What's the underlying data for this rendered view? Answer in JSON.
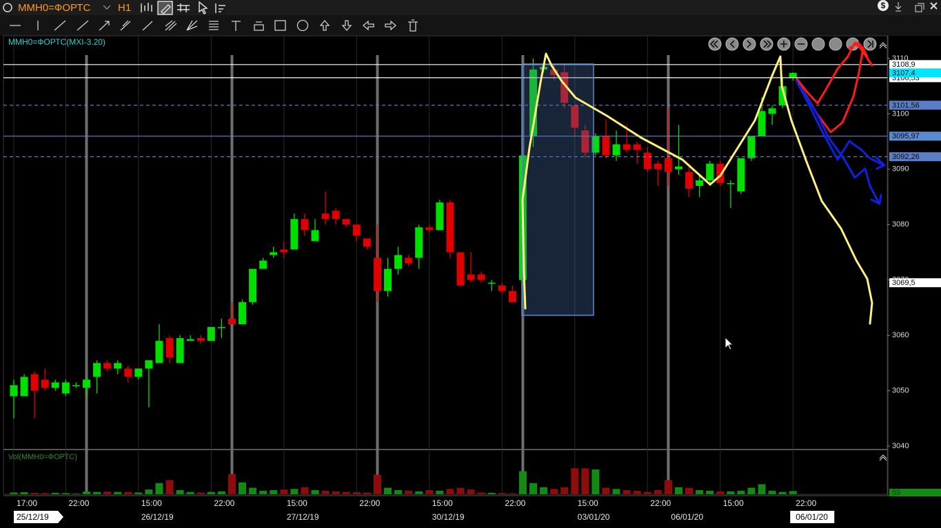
{
  "header": {
    "symbol": "MMH0=ФОРТС",
    "timeframe": "H1"
  },
  "chart_data": {
    "type": "candlestick",
    "title": "MMH0=ФОРТС(MXI-3.20)",
    "up_color": "#00e000",
    "down_color": "#e00000",
    "ylim": [
      3039.5,
      3114.1
    ],
    "yticks": [
      3040,
      3050,
      3060,
      3070,
      3080,
      3090,
      3100,
      3110
    ],
    "candles": {
      "open": [
        3049,
        3049,
        3053,
        3052,
        3050.5,
        3049.5,
        3051,
        3050.5,
        3052.5,
        3055,
        3054,
        3054,
        3052.5,
        3054,
        3055,
        3059.5,
        3055,
        3059,
        3059.5,
        3059,
        3061.5,
        3063,
        3062,
        3066,
        3072,
        3074.5,
        3075.5,
        3075.5,
        3081,
        3077,
        3082,
        3082.5,
        3081,
        3080,
        3077.5,
        3074,
        3068,
        3072,
        3074,
        3074,
        3079.5,
        3079,
        3084,
        3075,
        3071,
        3071,
        3069.5,
        3069,
        3068,
        3070,
        3096,
        3108,
        3108,
        3107.5,
        3101.5,
        3097,
        3093,
        3096,
        3092.5,
        3094.5,
        3094.5,
        3093,
        3091,
        3092,
        3090,
        3089.5,
        3087,
        3088,
        3091,
        3087.5,
        3086,
        3092,
        3096,
        3100,
        3101.5,
        3106.5
      ],
      "high": [
        3052,
        3053,
        3053.5,
        3054,
        3052,
        3052,
        3051.5,
        3052.5,
        3055.5,
        3055.5,
        3055.5,
        3054.5,
        3054,
        3055.5,
        3062,
        3060,
        3060,
        3060,
        3060,
        3061.5,
        3063,
        3066,
        3066.5,
        3072,
        3074,
        3076,
        3077,
        3082,
        3082,
        3081,
        3086,
        3083,
        3081,
        3080,
        3077.5,
        3080,
        3074,
        3076,
        3074.5,
        3080,
        3080,
        3084.5,
        3084.5,
        3075,
        3075,
        3071.5,
        3070,
        3069.5,
        3069,
        3092.5,
        3110,
        3109,
        3109,
        3109,
        3101.5,
        3098,
        3096.5,
        3099,
        3097,
        3098,
        3095,
        3094,
        3091.5,
        3101,
        3098,
        3091,
        3089,
        3091.5,
        3091.5,
        3088,
        3092,
        3096,
        3103,
        3101.5,
        3106.5,
        3107.5
      ],
      "low": [
        3045,
        3049,
        3045,
        3050,
        3050,
        3049,
        3050.5,
        3049,
        3049.5,
        3053.5,
        3053,
        3051.5,
        3052,
        3047,
        3055,
        3055,
        3055,
        3059,
        3058.5,
        3059,
        3059.5,
        3062,
        3062,
        3065.5,
        3072,
        3074,
        3074,
        3075.5,
        3078,
        3077,
        3080,
        3080,
        3079.5,
        3077,
        3075.5,
        3066,
        3067,
        3071,
        3072.5,
        3072,
        3078.5,
        3079,
        3074,
        3069,
        3069.5,
        3069.5,
        3068,
        3067.5,
        3066,
        3069,
        3094,
        3107.5,
        3106,
        3101,
        3096,
        3092,
        3092.5,
        3092,
        3091.5,
        3093,
        3091,
        3089.5,
        3087,
        3087,
        3089,
        3085,
        3085,
        3087,
        3087,
        3083,
        3085.5,
        3091.5,
        3096,
        3098,
        3101,
        3106
      ],
      "close": [
        3051,
        3052.5,
        3050,
        3050.5,
        3051.5,
        3051.5,
        3051,
        3052,
        3055,
        3054,
        3055,
        3052.5,
        3054,
        3055.5,
        3059,
        3056,
        3059.5,
        3059.3,
        3059,
        3061.5,
        3061.5,
        3062,
        3066,
        3072,
        3073.5,
        3075,
        3075,
        3081,
        3079,
        3079,
        3081,
        3081,
        3080,
        3078,
        3076,
        3068,
        3072,
        3074.5,
        3073,
        3079.5,
        3079,
        3084,
        3075,
        3069,
        3070,
        3070,
        3069.5,
        3068,
        3066,
        3092.5,
        3108,
        3108.5,
        3107,
        3102,
        3097.5,
        3093,
        3096,
        3092.5,
        3094.5,
        3093.5,
        3093.5,
        3090,
        3090,
        3089.5,
        3090.5,
        3086.5,
        3088,
        3091,
        3087.5,
        3087.5,
        3092,
        3096,
        3100.5,
        3101,
        3105,
        3107.4
      ]
    },
    "times": [
      "17:00",
      null,
      null,
      null,
      null,
      "22:00",
      null,
      null,
      null,
      null,
      null,
      null,
      "15:00",
      null,
      null,
      null,
      null,
      null,
      null,
      "22:00",
      null,
      null,
      null,
      null,
      null,
      null,
      "15:00",
      null,
      null,
      null,
      null,
      null,
      null,
      "22:00",
      null,
      null,
      null,
      null,
      null,
      null,
      "15:00",
      null,
      null,
      null,
      null,
      null,
      null,
      "22:00",
      null,
      null,
      null,
      null,
      null,
      null,
      "15:00",
      null,
      null,
      null,
      null,
      null,
      null,
      "22:00",
      null,
      null,
      null,
      null,
      null,
      null,
      "15:00",
      null,
      null,
      null,
      null,
      null,
      null,
      "22:00"
    ],
    "dates": [
      "25/12/19",
      null,
      null,
      null,
      null,
      null,
      null,
      null,
      null,
      null,
      null,
      null,
      "26/12/19",
      null,
      null,
      null,
      null,
      null,
      null,
      null,
      null,
      null,
      null,
      null,
      null,
      null,
      "27/12/19",
      null,
      null,
      null,
      null,
      null,
      null,
      null,
      null,
      null,
      null,
      null,
      null,
      null,
      "30/12/19",
      null,
      null,
      null,
      null,
      null,
      null,
      null,
      null,
      null,
      null,
      null,
      null,
      null,
      "03/01/20",
      null,
      null,
      null,
      null,
      null,
      null,
      null,
      null,
      "06/01/20",
      null,
      null,
      null,
      null,
      null,
      null,
      null,
      null,
      null,
      null,
      null,
      "06/01/20"
    ],
    "levels": [
      {
        "value": 3108.9,
        "label": "3108,9",
        "color": "#ffffff",
        "style": "solid"
      },
      {
        "value": 3106.53,
        "label": "3106,53",
        "color": "#ffffff",
        "style": "solid"
      },
      {
        "value": 3101.56,
        "label": "3101,56",
        "color": "#5a7fc8",
        "style": "dashed"
      },
      {
        "value": 3095.97,
        "label": "3095,97",
        "color": "#5a8ad0",
        "style": "solid"
      },
      {
        "value": 3092.26,
        "label": "3092,26",
        "color": "#5a7fc8",
        "style": "dashed"
      },
      {
        "value": 3069.5,
        "label": "3069,5",
        "color": "#ffffff",
        "style": "none"
      }
    ],
    "last_price": {
      "value": 3107.4,
      "label": "3107,4",
      "color": "#00e5ff"
    },
    "volume": {
      "title": "Vol(MMH0=ФОРТС)",
      "ylim": [
        0,
        700
      ],
      "up_color": "#138a13",
      "down_color": "#8e0c0c",
      "values": [
        30,
        35,
        25,
        20,
        25,
        20,
        10,
        45,
        40,
        45,
        40,
        40,
        30,
        80,
        190,
        240,
        70,
        40,
        30,
        40,
        50,
        340,
        200,
        110,
        60,
        70,
        80,
        90,
        120,
        70,
        60,
        50,
        40,
        35,
        30,
        330,
        110,
        70,
        60,
        50,
        70,
        60,
        90,
        110,
        80,
        30,
        25,
        20,
        15,
        390,
        190,
        120,
        90,
        120,
        440,
        440,
        420,
        110,
        90,
        70,
        60,
        40,
        70,
        240,
        120,
        110,
        70,
        60,
        50,
        50,
        60,
        110,
        170,
        60,
        40,
        55
      ],
      "last_label": {
        "value": 55,
        "label": "55"
      }
    }
  }
}
